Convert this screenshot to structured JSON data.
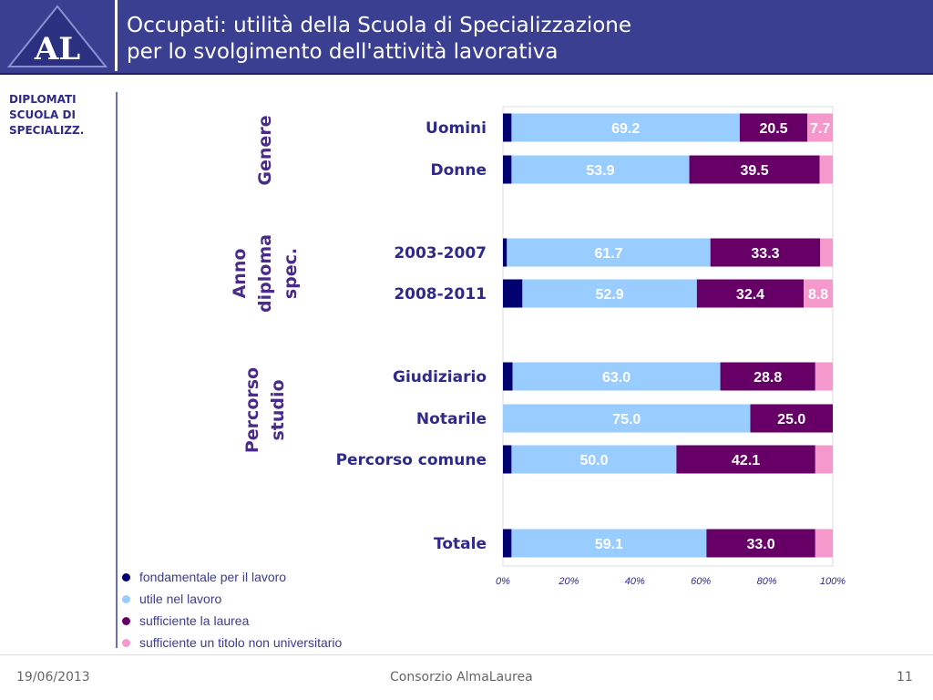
{
  "header": {
    "logo_text": "AL",
    "title_line1": "Occupati: utilità della Scuola di Specializzazione",
    "title_line2": "per lo svolgimento dell'attività lavorativa"
  },
  "sidebar": {
    "label": "DIPLOMATI\nSCUOLA DI\nSPECIALIZZ."
  },
  "footer": {
    "date": "19/06/2013",
    "organization": "Consorzio AlmaLaurea",
    "page": "11"
  },
  "colors": {
    "fondamentale": "#000070",
    "utile": "#99ccff",
    "sufficiente_laurea": "#660066",
    "sufficiente_titolo": "#f599cc"
  },
  "chart_data": {
    "type": "bar",
    "orientation": "horizontal",
    "stacked": true,
    "xlim": [
      0,
      100
    ],
    "x_ticks": [
      "0%",
      "20%",
      "40%",
      "60%",
      "80%",
      "100%"
    ],
    "groups": [
      {
        "label": "Genere",
        "categories": [
          "Uomini",
          "Donne"
        ]
      },
      {
        "label": "Anno diploma spec.",
        "categories": [
          "2003-2007",
          "2008-2011"
        ]
      },
      {
        "label": "Percorso studio",
        "categories": [
          "Giudiziario",
          "Notarile",
          "Percorso comune"
        ]
      },
      {
        "label": "",
        "categories": [
          "Totale"
        ]
      }
    ],
    "categories": [
      "Uomini",
      "Donne",
      "2003-2007",
      "2008-2011",
      "Giudiziario",
      "Notarile",
      "Percorso comune",
      "Totale"
    ],
    "series": [
      {
        "name": "fondamentale per il lavoro",
        "values": [
          2.6,
          2.6,
          1.2,
          5.9,
          2.9,
          0.0,
          2.6,
          2.6
        ]
      },
      {
        "name": "utile nel lavoro",
        "values": [
          69.2,
          53.9,
          61.7,
          52.9,
          63.0,
          75.0,
          50.0,
          59.1
        ]
      },
      {
        "name": "sufficiente la laurea",
        "values": [
          20.5,
          39.5,
          33.3,
          32.4,
          28.8,
          25.0,
          42.1,
          33.0
        ]
      },
      {
        "name": "sufficiente un titolo non universitario",
        "values": [
          7.7,
          4.0,
          3.8,
          8.8,
          5.9,
          0.0,
          5.3,
          5.3
        ]
      }
    ],
    "data_labels": [
      [
        null,
        "69.2",
        "20.5",
        "7.7"
      ],
      [
        null,
        "53.9",
        "39.5",
        null
      ],
      [
        null,
        "61.7",
        "33.3",
        null
      ],
      [
        null,
        "52.9",
        "32.4",
        "8.8"
      ],
      [
        null,
        "63.0",
        "28.8",
        null
      ],
      [
        null,
        "75.0",
        "25.0",
        null
      ],
      [
        null,
        "50.0",
        "42.1",
        null
      ],
      [
        null,
        "59.1",
        "33.0",
        null
      ]
    ],
    "legend_position": "bottom-left"
  }
}
